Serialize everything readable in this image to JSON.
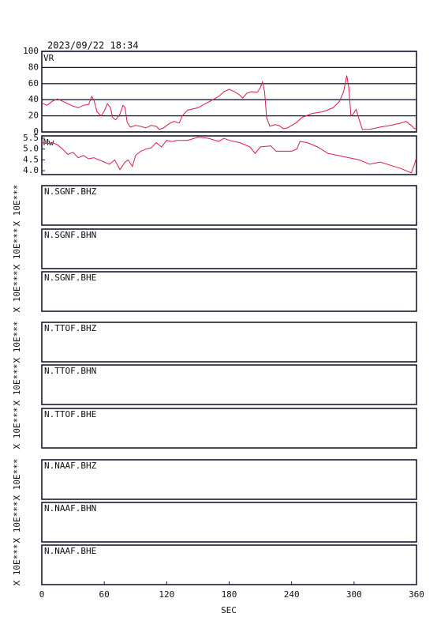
{
  "timestamp": "2023/09/22 18:34",
  "x_axis": {
    "xlim": [
      0,
      360
    ],
    "xticks": [
      0,
      60,
      120,
      180,
      240,
      300,
      360
    ],
    "label": "SEC"
  },
  "chart_data": [
    {
      "type": "line",
      "label": "VR",
      "color": "#d81b4a",
      "ylim": [
        0,
        100
      ],
      "yticks": [
        0,
        20,
        40,
        60,
        80,
        100
      ],
      "grid": true,
      "x": [
        0,
        5,
        10,
        15,
        20,
        25,
        30,
        35,
        40,
        45,
        48,
        50,
        53,
        57,
        60,
        63,
        66,
        68,
        71,
        75,
        78,
        80,
        82,
        85,
        90,
        95,
        100,
        105,
        110,
        113,
        117,
        122,
        127,
        132,
        135,
        140,
        150,
        160,
        170,
        175,
        180,
        185,
        190,
        193,
        197,
        202,
        207,
        210,
        212,
        214,
        216,
        219,
        224,
        228,
        232,
        236,
        240,
        245,
        250,
        260,
        270,
        280,
        286,
        290,
        293,
        295,
        297,
        299,
        302,
        305,
        308,
        315,
        325,
        335,
        345,
        350,
        355,
        358,
        360
      ],
      "values": [
        36,
        33,
        38,
        41,
        38,
        35,
        32,
        30,
        33,
        34,
        44,
        40,
        25,
        20,
        26,
        35,
        30,
        18,
        15,
        22,
        33,
        30,
        12,
        6,
        8,
        7,
        5,
        8,
        7,
        3,
        5,
        10,
        13,
        11,
        20,
        27,
        30,
        37,
        44,
        50,
        53,
        50,
        46,
        42,
        48,
        50,
        49,
        55,
        62,
        50,
        18,
        7,
        9,
        8,
        4,
        5,
        8,
        12,
        18,
        23,
        25,
        30,
        38,
        50,
        70,
        55,
        20,
        22,
        28,
        15,
        3,
        3,
        6,
        8,
        11,
        13,
        8,
        4,
        4
      ]
    },
    {
      "type": "line",
      "label": "Mw",
      "color": "#d81b4a",
      "ylim": [
        3.82,
        5.61
      ],
      "yticks": [
        {
          "value": 4,
          "label": "4.0"
        },
        4.5,
        {
          "value": 5,
          "label": "5.0"
        },
        5.5
      ],
      "grid": false,
      "x": [
        0,
        5,
        10,
        15,
        20,
        25,
        30,
        35,
        40,
        45,
        50,
        55,
        60,
        65,
        70,
        75,
        80,
        83,
        87,
        90,
        95,
        100,
        105,
        110,
        115,
        120,
        125,
        130,
        140,
        150,
        160,
        170,
        175,
        180,
        190,
        200,
        205,
        210,
        220,
        225,
        235,
        240,
        245,
        248,
        255,
        265,
        275,
        285,
        295,
        305,
        315,
        325,
        335,
        345,
        350,
        355,
        358,
        360
      ],
      "values": [
        5.3,
        5.25,
        5.3,
        5.2,
        5.0,
        4.75,
        4.85,
        4.6,
        4.7,
        4.55,
        4.6,
        4.5,
        4.4,
        4.3,
        4.5,
        4.05,
        4.4,
        4.5,
        4.2,
        4.7,
        4.9,
        5.0,
        5.05,
        5.3,
        5.1,
        5.4,
        5.35,
        5.4,
        5.4,
        5.55,
        5.5,
        5.35,
        5.5,
        5.4,
        5.3,
        5.1,
        4.8,
        5.1,
        5.15,
        4.9,
        4.9,
        4.9,
        5.0,
        5.35,
        5.3,
        5.1,
        4.8,
        4.7,
        4.6,
        4.5,
        4.3,
        4.4,
        4.25,
        4.1,
        4.0,
        3.9,
        4.3,
        4.6
      ]
    }
  ],
  "traces": [
    {
      "label": "N.SGNF.BHZ",
      "ylabel": "X 10E***"
    },
    {
      "label": "N.SGNF.BHN",
      "ylabel": "X 10E***"
    },
    {
      "label": "N.SGNF.BHE",
      "ylabel": "X 10E***"
    },
    {
      "label": "N.TTOF.BHZ",
      "ylabel": "X 10E***"
    },
    {
      "label": "N.TTOF.BHN",
      "ylabel": "X 10E***"
    },
    {
      "label": "N.TTOF.BHE",
      "ylabel": "X 10E***"
    },
    {
      "label": "N.NAAF.BHZ",
      "ylabel": "X 10E***"
    },
    {
      "label": "N.NAAF.BHN",
      "ylabel": "X 10E***"
    },
    {
      "label": "N.NAAF.BHE",
      "ylabel": "X 10E***"
    }
  ]
}
